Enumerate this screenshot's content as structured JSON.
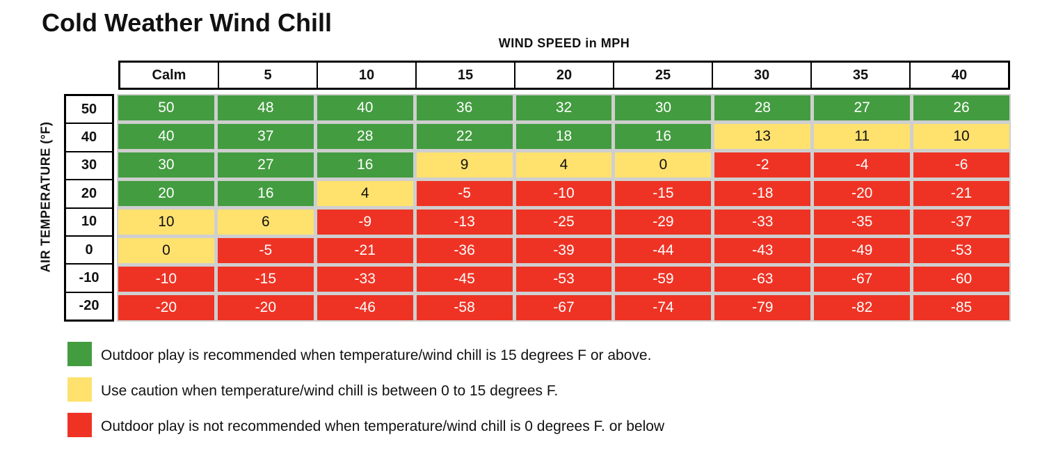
{
  "chart_data": {
    "type": "table",
    "title": "Cold Weather Wind Chill",
    "xlabel": "WIND SPEED in MPH",
    "ylabel": "AIR TEMPERATURE (°F)",
    "columns": [
      "Calm",
      "5",
      "10",
      "15",
      "20",
      "25",
      "30",
      "35",
      "40"
    ],
    "rows": [
      "50",
      "40",
      "30",
      "20",
      "10",
      "0",
      "-10",
      "-20"
    ],
    "values": [
      [
        50,
        48,
        40,
        36,
        32,
        30,
        28,
        27,
        26
      ],
      [
        40,
        37,
        28,
        22,
        18,
        16,
        13,
        11,
        10
      ],
      [
        30,
        27,
        16,
        9,
        4,
        0,
        -2,
        -4,
        -6
      ],
      [
        20,
        16,
        4,
        -5,
        -10,
        -15,
        -18,
        -20,
        -21
      ],
      [
        10,
        6,
        -9,
        -13,
        -25,
        -29,
        -33,
        -35,
        -37
      ],
      [
        0,
        -5,
        -21,
        -36,
        -39,
        -44,
        -43,
        -49,
        -53
      ],
      [
        -10,
        -15,
        -33,
        -45,
        -53,
        -59,
        -63,
        -67,
        -60
      ],
      [
        -20,
        -20,
        -46,
        -58,
        -67,
        -74,
        -79,
        -82,
        -85
      ]
    ],
    "categories": [
      [
        "green",
        "green",
        "green",
        "green",
        "green",
        "green",
        "green",
        "green",
        "green"
      ],
      [
        "green",
        "green",
        "green",
        "green",
        "green",
        "green",
        "yellow",
        "yellow",
        "yellow"
      ],
      [
        "green",
        "green",
        "green",
        "yellow",
        "yellow",
        "yellow",
        "red",
        "red",
        "red"
      ],
      [
        "green",
        "green",
        "yellow",
        "red",
        "red",
        "red",
        "red",
        "red",
        "red"
      ],
      [
        "yellow",
        "yellow",
        "red",
        "red",
        "red",
        "red",
        "red",
        "red",
        "red"
      ],
      [
        "yellow",
        "red",
        "red",
        "red",
        "red",
        "red",
        "red",
        "red",
        "red"
      ],
      [
        "red",
        "red",
        "red",
        "red",
        "red",
        "red",
        "red",
        "red",
        "red"
      ],
      [
        "red",
        "red",
        "red",
        "red",
        "red",
        "red",
        "red",
        "red",
        "red"
      ]
    ],
    "legend": [
      {
        "color": "#439c40",
        "text": "Outdoor play is recommended when temperature/wind chill is 15 degrees F or above."
      },
      {
        "color": "#ffe16e",
        "text": "Use caution when temperature/wind chill is between 0 to 15 degrees F."
      },
      {
        "color": "#ee3324",
        "text": "Outdoor play is not recommended when temperature/wind chill is 0 degrees F. or below"
      }
    ],
    "legend_position": "bottom-left"
  }
}
